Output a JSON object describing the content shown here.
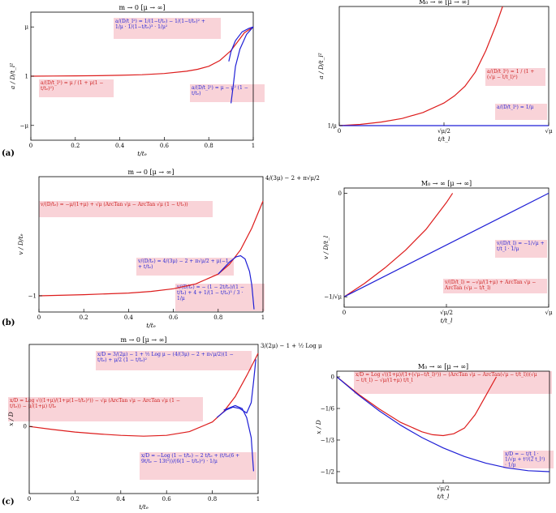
{
  "panel_labels": [
    "(a)",
    "(b)",
    "(c)"
  ],
  "chart_data": [
    {
      "id": "a-left",
      "type": "line",
      "title": "m → 0   [μ → ∞]",
      "xlabel": "t/tₑ",
      "ylabel": "a / D/t_l²",
      "xlim": [
        0,
        1
      ],
      "ylim": [
        -1.3,
        1.3
      ],
      "xticks": [
        0,
        0.2,
        0.4,
        0.6,
        0.8,
        1
      ],
      "xtick_labels": [
        "0",
        "0.2",
        "0.4",
        "0.6",
        "0.8",
        "1"
      ],
      "yticks": [
        -1,
        0,
        1
      ],
      "ytick_labels": [
        "−μ",
        "1",
        "μ"
      ],
      "series": [
        {
          "color": "#dd1c1c",
          "points": [
            [
              0,
              0
            ],
            [
              0.1,
              0.003
            ],
            [
              0.2,
              0.006
            ],
            [
              0.3,
              0.01
            ],
            [
              0.4,
              0.018
            ],
            [
              0.5,
              0.03
            ],
            [
              0.6,
              0.055
            ],
            [
              0.7,
              0.1
            ],
            [
              0.75,
              0.14
            ],
            [
              0.8,
              0.2
            ],
            [
              0.85,
              0.32
            ],
            [
              0.9,
              0.52
            ],
            [
              0.93,
              0.7
            ],
            [
              0.96,
              0.88
            ],
            [
              1,
              1
            ]
          ]
        },
        {
          "color": "#1f1fd6",
          "points": [
            [
              0.89,
              0.3
            ],
            [
              0.9,
              0.5
            ],
            [
              0.92,
              0.72
            ],
            [
              0.95,
              0.9
            ],
            [
              0.98,
              0.97
            ],
            [
              1,
              1
            ]
          ]
        },
        {
          "color": "#1f1fd6",
          "points": [
            [
              0.9,
              -0.55
            ],
            [
              0.91,
              -0.2
            ],
            [
              0.92,
              0.2
            ],
            [
              0.94,
              0.55
            ],
            [
              0.97,
              0.85
            ],
            [
              1,
              1
            ]
          ]
        }
      ],
      "annotations": [
        {
          "text": "a/(D/t_l²) = 1/(1−t/tₑ) − 1/(1−t/tₑ)² + 1/μ · 1/(1−t/tₑ)³ · 1/μ²",
          "color": "blue"
        },
        {
          "text": "a/(D/t_l²) = μ / (1 + μ(1 − t/tₑ)²)",
          "color": "red"
        },
        {
          "text": "a/(D/t_l²) = μ − μ² (1 − t/tₑ)",
          "color": "blue"
        }
      ]
    },
    {
      "id": "a-right",
      "type": "line",
      "title": "M₀ → ∞   [μ → ∞]",
      "xlabel": "t/t_l",
      "ylabel": "a / D/t_l²",
      "xlim": [
        0,
        1
      ],
      "ylim": [
        0,
        1
      ],
      "xticks": [
        0,
        0.5,
        1
      ],
      "xtick_labels": [
        "0",
        "√μ/2",
        "√μ"
      ],
      "yticks": [
        0
      ],
      "ytick_labels": [
        "1/μ"
      ],
      "series": [
        {
          "color": "#dd1c1c",
          "points": [
            [
              0,
              0
            ],
            [
              0.1,
              0.01
            ],
            [
              0.2,
              0.03
            ],
            [
              0.3,
              0.06
            ],
            [
              0.4,
              0.11
            ],
            [
              0.5,
              0.19
            ],
            [
              0.55,
              0.25
            ],
            [
              0.6,
              0.33
            ],
            [
              0.65,
              0.45
            ],
            [
              0.7,
              0.63
            ],
            [
              0.75,
              0.85
            ],
            [
              0.78,
              1
            ]
          ]
        },
        {
          "color": "#1f1fd6",
          "points": [
            [
              0,
              0
            ],
            [
              1,
              0
            ]
          ]
        }
      ],
      "annotations": [
        {
          "text": "a/(D/t_l²) = 1 / (1 + (√μ − t/t_l)²)",
          "color": "red"
        },
        {
          "text": "a/(D/t_l²) = 1/μ",
          "color": "blue"
        }
      ]
    },
    {
      "id": "b-left",
      "type": "line",
      "title": "m → 0   [μ → ∞]",
      "xlabel": "t/tₑ",
      "ylabel": "v / D/tₑ",
      "xlim": [
        0,
        1
      ],
      "ylim": [
        -1.3,
        1.2
      ],
      "xticks": [
        0,
        0.2,
        0.4,
        0.6,
        0.8,
        1
      ],
      "xtick_labels": [
        "0",
        "0.2",
        "0.4",
        "0.6",
        "0.8",
        "1"
      ],
      "yticks": [
        -1
      ],
      "ytick_labels": [
        "−1"
      ],
      "right_label": "4/(3μ) − 2 + π√μ/2",
      "series": [
        {
          "color": "#dd1c1c",
          "points": [
            [
              0,
              -1
            ],
            [
              0.2,
              -0.98
            ],
            [
              0.4,
              -0.95
            ],
            [
              0.5,
              -0.92
            ],
            [
              0.6,
              -0.87
            ],
            [
              0.7,
              -0.78
            ],
            [
              0.8,
              -0.6
            ],
            [
              0.85,
              -0.42
            ],
            [
              0.9,
              -0.15
            ],
            [
              0.95,
              0.25
            ],
            [
              1,
              0.75
            ]
          ]
        },
        {
          "color": "#1f1fd6",
          "points": [
            [
              0.8,
              -0.6
            ],
            [
              0.85,
              -0.38
            ],
            [
              0.88,
              -0.28
            ],
            [
              0.9,
              -0.26
            ],
            [
              0.92,
              -0.32
            ],
            [
              0.94,
              -0.55
            ],
            [
              0.95,
              -0.8
            ],
            [
              0.96,
              -1.25
            ]
          ]
        }
      ],
      "annotations": [
        {
          "text": "v/(D/tₑ) = −μ/(1+μ) + √μ (ArcTan √μ − ArcTan √μ (1 − t/tₑ))",
          "color": "red"
        },
        {
          "text": "v/(D/tₑ) = 4/(3μ) − 2 + π√μ/2 + μ(−1 + t/tₑ)",
          "color": "blue"
        },
        {
          "text": "v/(D/tₑ) = − (1 − 2t/tₑ)/(1 − t/tₑ) + 4 + 1/(1 − t/tₑ)³ / 3 · 1/μ",
          "color": "blue"
        }
      ]
    },
    {
      "id": "b-right",
      "type": "line",
      "title": "M₀ → ∞   [μ → ∞]",
      "xlabel": "t/t_l",
      "ylabel": "v / D/t_l",
      "xlim": [
        0,
        1
      ],
      "ylim": [
        -1.1,
        0.05
      ],
      "xticks": [
        0,
        0.5,
        1
      ],
      "xtick_labels": [
        "0",
        "√μ/2",
        "√μ"
      ],
      "yticks": [
        -1,
        0
      ],
      "ytick_labels": [
        "−1/√μ",
        "0"
      ],
      "series": [
        {
          "color": "#dd1c1c",
          "points": [
            [
              0,
              -1
            ],
            [
              0.1,
              -0.87
            ],
            [
              0.2,
              -0.72
            ],
            [
              0.3,
              -0.55
            ],
            [
              0.4,
              -0.35
            ],
            [
              0.45,
              -0.22
            ],
            [
              0.5,
              -0.09
            ],
            [
              0.53,
              0
            ]
          ]
        },
        {
          "color": "#1f1fd6",
          "points": [
            [
              0,
              -1
            ],
            [
              1,
              0
            ]
          ]
        }
      ],
      "annotations": [
        {
          "text": "v/(D/t_l) = −1/√μ + t/t_l · 1/μ",
          "color": "blue"
        },
        {
          "text": "v/(D/t_l) = −√μ/(1+μ) + ArcTan √μ − ArcTan (√μ − t/t_l)",
          "color": "red"
        }
      ]
    },
    {
      "id": "c-left",
      "type": "line",
      "title": "m → 0   [μ → ∞]",
      "xlabel": "t/tₑ",
      "ylabel": "x / D",
      "xlim": [
        0,
        1
      ],
      "ylim": [
        -0.9,
        1.1
      ],
      "xticks": [
        0,
        0.2,
        0.4,
        0.6,
        0.8,
        1
      ],
      "xtick_labels": [
        "0",
        "0.2",
        "0.4",
        "0.6",
        "0.8",
        "1"
      ],
      "yticks": [
        0
      ],
      "ytick_labels": [
        "0"
      ],
      "right_label": "3/(2μ) − 1 + ½ Log μ",
      "series": [
        {
          "color": "#dd1c1c",
          "points": [
            [
              0,
              0
            ],
            [
              0.1,
              -0.04
            ],
            [
              0.2,
              -0.075
            ],
            [
              0.3,
              -0.1
            ],
            [
              0.4,
              -0.12
            ],
            [
              0.5,
              -0.13
            ],
            [
              0.6,
              -0.12
            ],
            [
              0.7,
              -0.07
            ],
            [
              0.8,
              0.06
            ],
            [
              0.85,
              0.2
            ],
            [
              0.9,
              0.4
            ],
            [
              0.95,
              0.68
            ],
            [
              1,
              0.98
            ]
          ]
        },
        {
          "color": "#1f1fd6",
          "points": [
            [
              0.82,
              0.12
            ],
            [
              0.86,
              0.22
            ],
            [
              0.89,
              0.26
            ],
            [
              0.92,
              0.24
            ],
            [
              0.95,
              0.18
            ],
            [
              0.97,
              0.32
            ],
            [
              0.98,
              0.6
            ],
            [
              0.99,
              0.9
            ]
          ]
        },
        {
          "color": "#1f1fd6",
          "points": [
            [
              0.85,
              0.22
            ],
            [
              0.9,
              0.28
            ],
            [
              0.93,
              0.24
            ],
            [
              0.95,
              0.12
            ],
            [
              0.97,
              -0.15
            ],
            [
              0.98,
              -0.6
            ]
          ]
        }
      ],
      "annotations": [
        {
          "text": "x/D = 3/(2μ) − 1 + ½ Log μ − (4/(3μ) − 2 + π√μ/2)(1 − t/tₑ) + μ/2 (1 − t/tₑ)²",
          "color": "blue"
        },
        {
          "text": "x/D = Log √((1+μ)/(1+μ(1−t/tₑ)²)) − √μ (ArcTan √μ − ArcTan √μ (1 − t/tₑ)) − μ/(1+μ) t/tₑ",
          "color": "red"
        },
        {
          "text": "x/D = −Log (1 − t/tₑ) − 2 t/tₑ + (t/tₑ(6 + 9t/tₑ − 13t²))/(6(1 − t/tₑ)²) · 1/μ",
          "color": "blue"
        }
      ]
    },
    {
      "id": "c-right",
      "type": "line",
      "title": "M₀ → ∞   [μ → ∞]",
      "xlabel": "t/t_l",
      "ylabel": "x / D",
      "xlim": [
        0,
        1
      ],
      "ylim": [
        -0.56,
        0.03
      ],
      "xticks": [
        0.5
      ],
      "xtick_labels": [
        "√μ/2"
      ],
      "yticks": [
        0,
        -0.1667,
        -0.3333,
        -0.5
      ],
      "ytick_labels": [
        "0",
        "−1/6",
        "−1/3",
        "−1/2"
      ],
      "series": [
        {
          "color": "#dd1c1c",
          "points": [
            [
              0,
              0
            ],
            [
              0.1,
              -0.09
            ],
            [
              0.2,
              -0.17
            ],
            [
              0.3,
              -0.24
            ],
            [
              0.4,
              -0.29
            ],
            [
              0.45,
              -0.305
            ],
            [
              0.5,
              -0.31
            ],
            [
              0.55,
              -0.3
            ],
            [
              0.6,
              -0.27
            ],
            [
              0.65,
              -0.2
            ],
            [
              0.7,
              -0.1
            ],
            [
              0.75,
              0
            ]
          ]
        },
        {
          "color": "#1f1fd6",
          "points": [
            [
              0,
              0
            ],
            [
              0.1,
              -0.095
            ],
            [
              0.2,
              -0.18
            ],
            [
              0.3,
              -0.255
            ],
            [
              0.4,
              -0.32
            ],
            [
              0.5,
              -0.375
            ],
            [
              0.6,
              -0.42
            ],
            [
              0.7,
              -0.455
            ],
            [
              0.8,
              -0.48
            ],
            [
              0.9,
              -0.495
            ],
            [
              1,
              -0.5
            ]
          ]
        }
      ],
      "annotations": [
        {
          "text": "x/D = Log √((1+μ)/(1+(√μ−t/t_l)²)) − (ArcTan √μ − ArcTan(√μ − t/t_l))(√μ − t/t_l) − √μ/(1+μ) t/t_l",
          "color": "red"
        },
        {
          "text": "x/D = − t/t_l · 1/√μ + t²/(2 t_l²) · 1/μ",
          "color": "blue"
        }
      ]
    }
  ]
}
